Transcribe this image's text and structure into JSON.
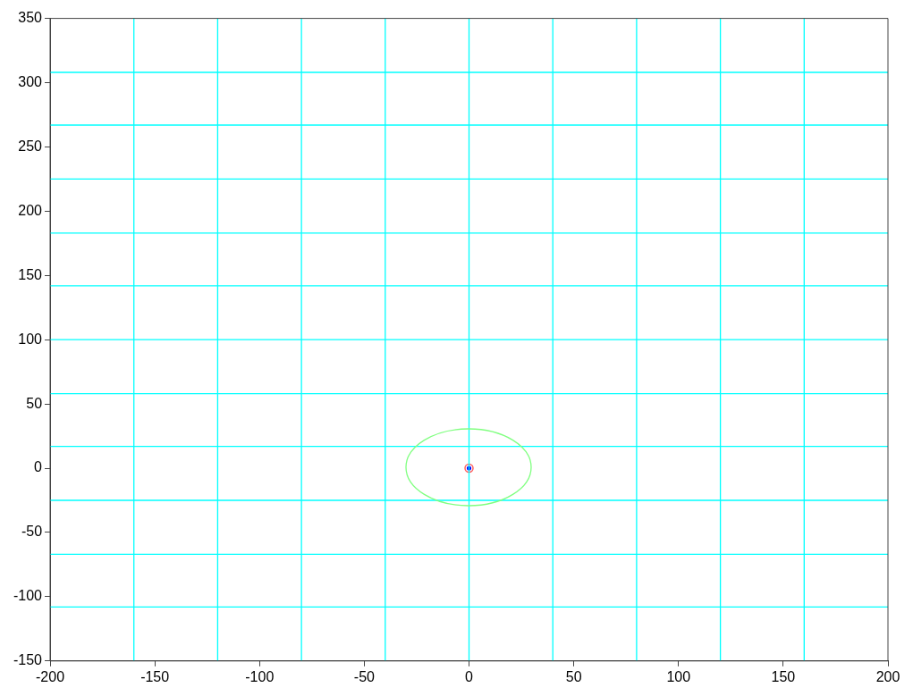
{
  "chart_data": {
    "type": "line",
    "xlim": [
      -200,
      200
    ],
    "ylim": [
      -150,
      350
    ],
    "xticks": [
      -200,
      -150,
      -100,
      -50,
      0,
      50,
      100,
      150,
      200
    ],
    "yticks": [
      -150,
      -100,
      -50,
      0,
      50,
      100,
      150,
      200,
      250,
      300,
      350
    ],
    "grid": false,
    "legend": false,
    "marker": "none",
    "line_style": "solid",
    "series": [
      {
        "color": "#00ffff",
        "x": [
          -160,
          -160
        ],
        "values": [
          -150,
          350
        ]
      },
      {
        "color": "#00ffff",
        "x": [
          -120,
          -120
        ],
        "values": [
          -150,
          350
        ]
      },
      {
        "color": "#00ffff",
        "x": [
          -80,
          -80
        ],
        "values": [
          -150,
          350
        ]
      },
      {
        "color": "#00ffff",
        "x": [
          -40,
          -40
        ],
        "values": [
          -150,
          350
        ]
      },
      {
        "color": "#00ffff",
        "x": [
          0,
          0
        ],
        "values": [
          -150,
          350
        ]
      },
      {
        "color": "#00ffff",
        "x": [
          40,
          40
        ],
        "values": [
          -150,
          350
        ]
      },
      {
        "color": "#00ffff",
        "x": [
          80,
          80
        ],
        "values": [
          -150,
          350
        ]
      },
      {
        "color": "#00ffff",
        "x": [
          120,
          120
        ],
        "values": [
          -150,
          350
        ]
      },
      {
        "color": "#00ffff",
        "x": [
          160,
          160
        ],
        "values": [
          -150,
          350
        ]
      },
      {
        "color": "#00ffff",
        "x": [
          -200,
          200
        ],
        "values": [
          308,
          308
        ]
      },
      {
        "color": "#00ffff",
        "x": [
          -200,
          200
        ],
        "values": [
          267,
          267
        ]
      },
      {
        "color": "#00ffff",
        "x": [
          -200,
          200
        ],
        "values": [
          225,
          225
        ]
      },
      {
        "color": "#00ffff",
        "x": [
          -200,
          200
        ],
        "values": [
          183,
          183
        ]
      },
      {
        "color": "#00ffff",
        "x": [
          -200,
          200
        ],
        "values": [
          142,
          142
        ]
      },
      {
        "color": "#00ffff",
        "x": [
          -200,
          200
        ],
        "values": [
          100,
          100
        ]
      },
      {
        "color": "#00ffff",
        "x": [
          -200,
          200
        ],
        "values": [
          58,
          58
        ]
      },
      {
        "color": "#00ffff",
        "x": [
          -200,
          200
        ],
        "values": [
          17,
          17
        ]
      },
      {
        "color": "#00ffff",
        "x": [
          -200,
          200
        ],
        "values": [
          -25,
          -25
        ]
      },
      {
        "color": "#00ffff",
        "x": [
          -200,
          200
        ],
        "values": [
          -67,
          -67
        ]
      },
      {
        "color": "#00ffff",
        "x": [
          -200,
          200
        ],
        "values": [
          -108,
          -108
        ]
      },
      {
        "type": "scatter",
        "marker": "circle",
        "color": "#ff6060",
        "x": [
          0
        ],
        "values": [
          0
        ]
      },
      {
        "type": "scatter",
        "marker": "circle",
        "color": "#0000ff",
        "x": [
          0
        ],
        "values": [
          0
        ]
      }
    ]
  }
}
